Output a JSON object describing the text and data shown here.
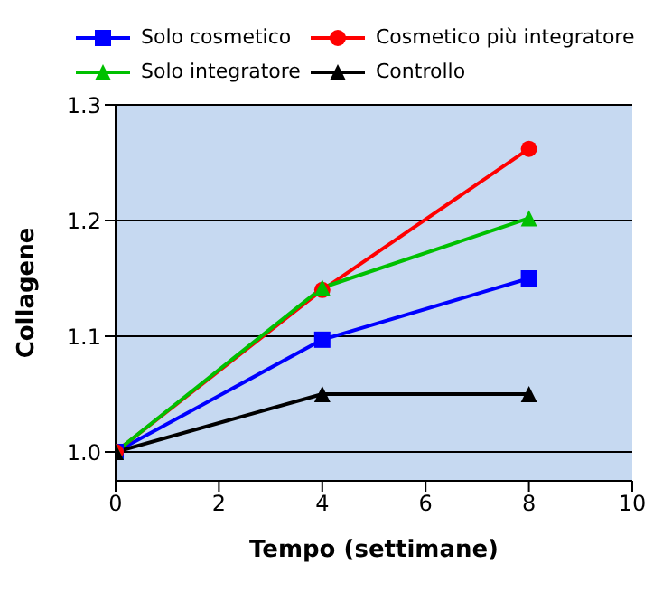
{
  "chart_data": {
    "type": "line",
    "xlabel": "Tempo (settimane)",
    "ylabel": "Collagene",
    "x": [
      0,
      4,
      8
    ],
    "series": [
      {
        "name": "Solo cosmetico",
        "color": "#0000ff",
        "marker": "square",
        "values": [
          1.0,
          1.097,
          1.15
        ]
      },
      {
        "name": "Cosmetico più integratore",
        "color": "#ff0000",
        "marker": "circle",
        "values": [
          1.0,
          1.14,
          1.262
        ]
      },
      {
        "name": "Solo integratore",
        "color": "#00c000",
        "marker": "triangle",
        "values": [
          1.0,
          1.142,
          1.202
        ]
      },
      {
        "name": "Controllo",
        "color": "#000000",
        "marker": "triangle",
        "values": [
          1.0,
          1.05,
          1.05
        ]
      }
    ],
    "xlim": [
      0,
      10
    ],
    "xticks": [
      0,
      2,
      4,
      6,
      8,
      10
    ],
    "ylim": [
      0.975,
      1.3
    ],
    "yticks": [
      {
        "value": 1.0,
        "label": "1.0"
      },
      {
        "value": 1.1,
        "label": "1.1"
      },
      {
        "value": 1.2,
        "label": "1.2"
      },
      {
        "value": 1.3,
        "label": "1.3"
      }
    ],
    "grid": "y",
    "legend": "top"
  }
}
